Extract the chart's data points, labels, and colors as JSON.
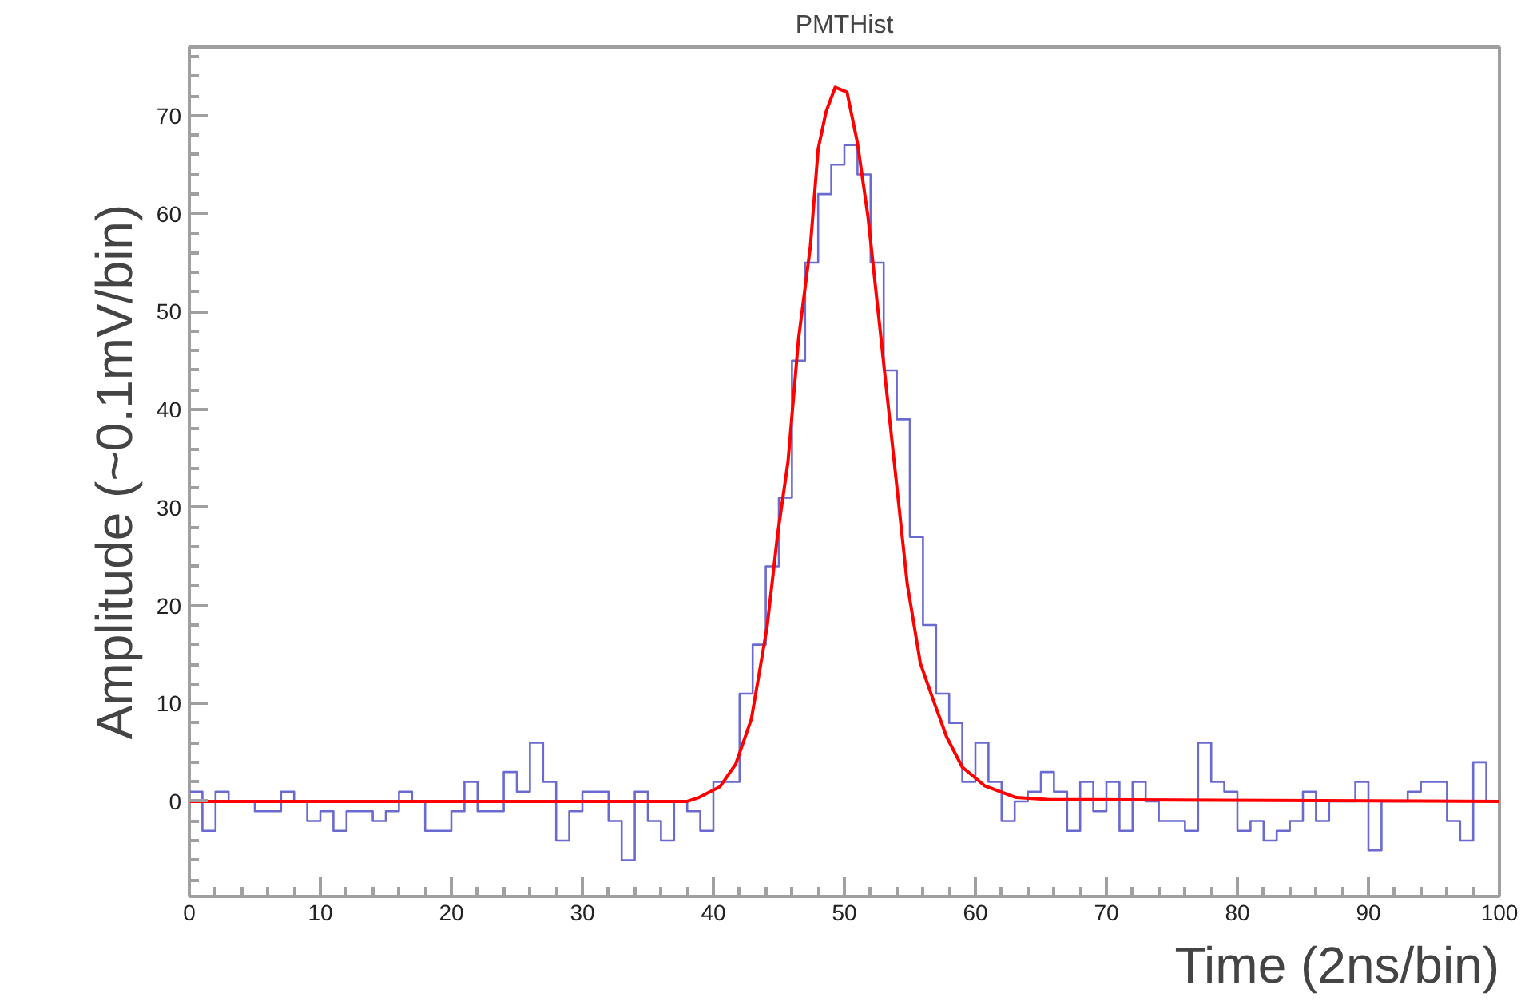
{
  "chart_data": {
    "type": "histogram",
    "title": "PMTHist",
    "xlabel": "Time (2ns/bin)",
    "ylabel": "Amplitude (~0.1mV/bin)",
    "bins": [
      0,
      1,
      2,
      3,
      4,
      5,
      6,
      7,
      8,
      9,
      10,
      11,
      12,
      13,
      14,
      15,
      16,
      17,
      18,
      19,
      20,
      21,
      22,
      23,
      24,
      25,
      26,
      27,
      28,
      29,
      30,
      31,
      32,
      33,
      34,
      35,
      36,
      37,
      38,
      39,
      40,
      41,
      42,
      43,
      44,
      45,
      46,
      47,
      48,
      49,
      50,
      51,
      52,
      53,
      54,
      55,
      56,
      57,
      58,
      59,
      60,
      61,
      62,
      63,
      64,
      65,
      66,
      67,
      68,
      69,
      70,
      71,
      72,
      73,
      74,
      75,
      76,
      77,
      78,
      79,
      80,
      81,
      82,
      83,
      84,
      85,
      86,
      87,
      88,
      89,
      90,
      91,
      92,
      93,
      94,
      95,
      96,
      97,
      98,
      99,
      100
    ],
    "series": [
      {
        "color": "#6a6ad0",
        "values": [
          1,
          -3,
          1,
          0,
          0,
          -1,
          -1,
          1,
          0,
          -2,
          -1,
          -3,
          -1,
          -1,
          -2,
          -1,
          1,
          0,
          -3,
          -3,
          -1,
          2,
          -1,
          -1,
          3,
          1,
          6,
          2,
          -4,
          -1,
          1,
          1,
          -2,
          -6,
          1,
          -2,
          -4,
          0,
          -1,
          -3,
          2,
          2,
          11,
          16,
          24,
          31,
          45,
          55,
          62,
          65,
          67,
          64,
          55,
          44,
          39,
          27,
          18,
          11,
          8,
          2,
          6,
          2,
          -2,
          0,
          1,
          3,
          1,
          -3,
          2,
          -1,
          2,
          -3,
          2,
          0,
          -2,
          -2,
          -3,
          6,
          2,
          1,
          -3,
          -2,
          -4,
          -3,
          -2,
          1,
          -2,
          0,
          0,
          2,
          -5,
          0,
          0,
          1,
          2,
          2,
          -2,
          -4,
          4,
          0
        ]
      },
      {
        "type": "line",
        "color": "#ff0000",
        "x": [
          0,
          38,
          38.9,
          40.5,
          41.7,
          42.9,
          44.1,
          44.9,
          45.7,
          46.5,
          47.4,
          48.0,
          48.6,
          49.3,
          50.2,
          51.0,
          51.8,
          52.8,
          53.8,
          54.8,
          55.8,
          56.8,
          57.8,
          59.0,
          60.7,
          63.1,
          65.5,
          100
        ],
        "values": [
          0,
          0,
          0.4,
          1.5,
          3.8,
          8.4,
          17.8,
          27.2,
          34.7,
          47.2,
          56.6,
          66.6,
          70.4,
          72.9,
          72.4,
          67.2,
          59.7,
          47.2,
          34.7,
          22.2,
          14.1,
          10.3,
          6.6,
          3.5,
          1.6,
          0.4,
          0.2,
          0
        ]
      }
    ],
    "xlim": [
      0,
      100
    ],
    "xticks": [
      0,
      10,
      20,
      30,
      40,
      50,
      60,
      70,
      80,
      90,
      100
    ],
    "ylim": [
      -9.7,
      77
    ],
    "yticks": [
      0,
      10,
      20,
      30,
      40,
      50,
      60,
      70
    ],
    "grid": false
  }
}
